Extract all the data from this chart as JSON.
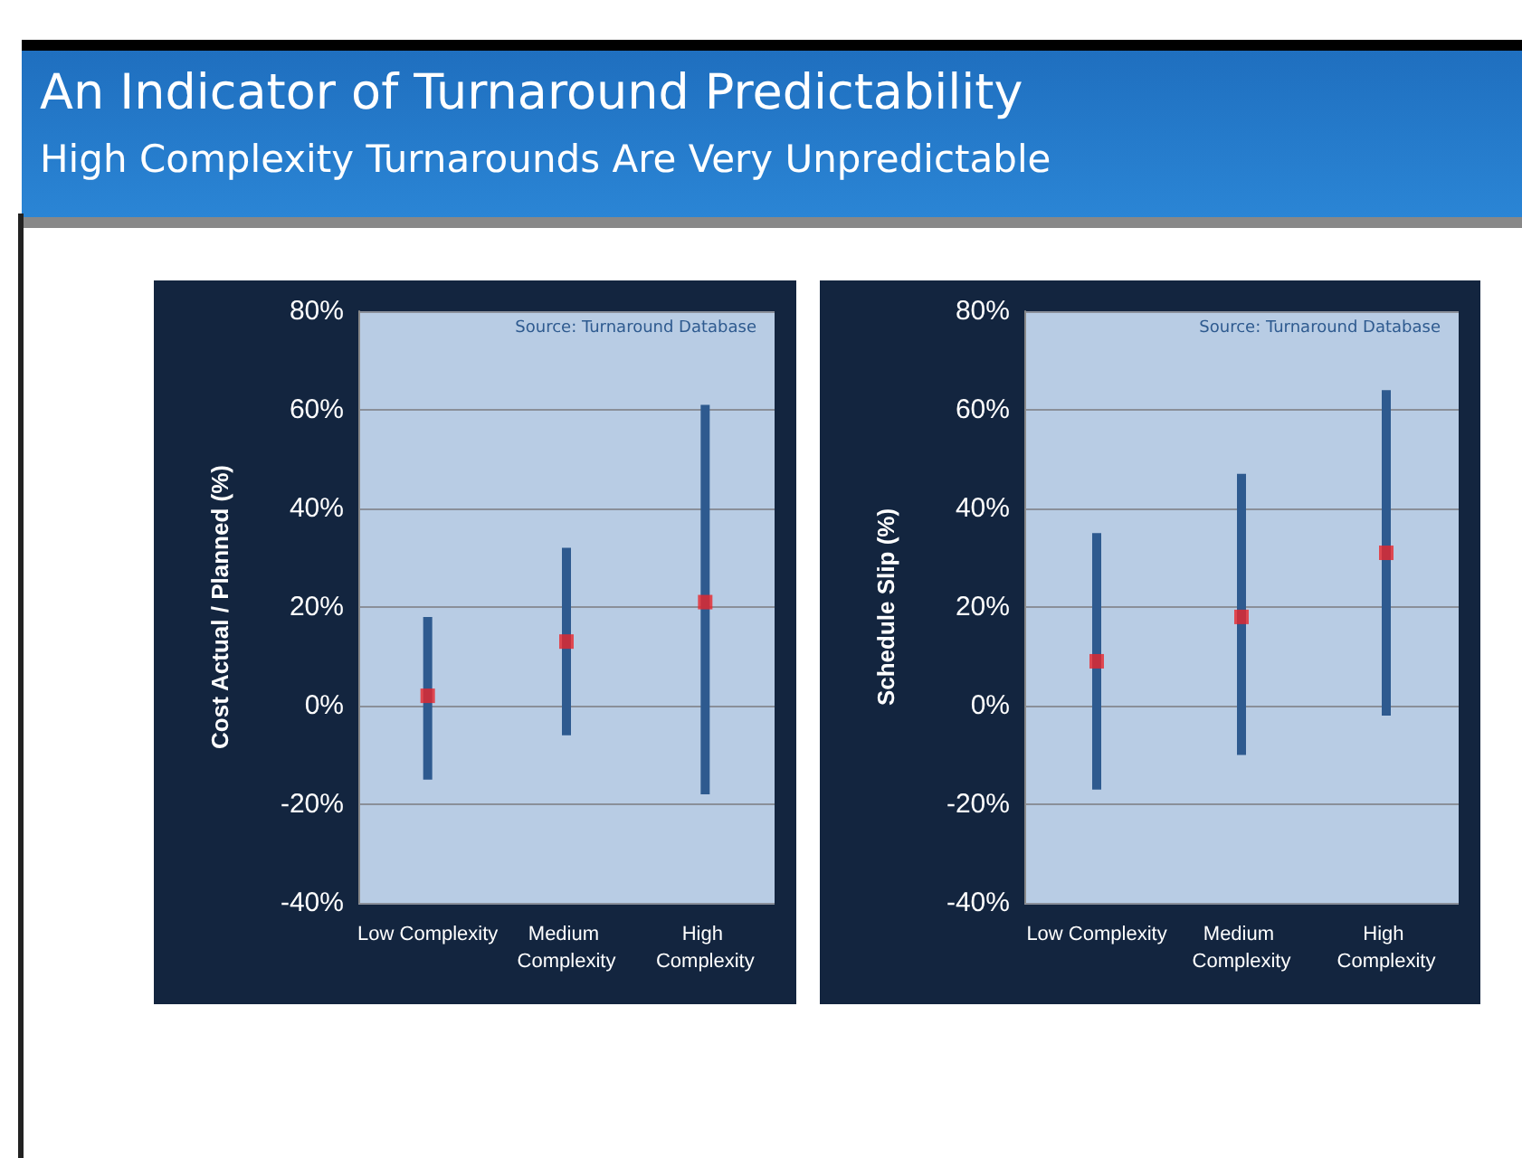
{
  "chart_data": [
    {
      "type": "bar",
      "title": "An Indicator of Turnaround Predictability",
      "subtitle": "High Complexity Turnarounds Are Very Unpredictable",
      "ylabel": "Cost Actual / Planned (%)",
      "annotations": [
        "Source: Turnaround Database"
      ],
      "categories": [
        "Low Complexity",
        "Medium Complexity",
        "High Complexity"
      ],
      "series": [
        {
          "color": "#2e5a8f",
          "base": [
            -15,
            -6,
            -18
          ],
          "values": [
            33,
            38,
            79
          ]
        },
        {
          "type": "scatter",
          "marker": "square",
          "color": "#e8262a",
          "x": [
            "Low Complexity",
            "Medium Complexity",
            "High Complexity"
          ],
          "values": [
            2,
            13,
            21
          ]
        }
      ],
      "ylim": [
        -40,
        80
      ],
      "yticks": [
        {
          "value": -40,
          "label": "-40%"
        },
        {
          "value": -20,
          "label": "-20%"
        },
        {
          "value": 0,
          "label": "0%"
        },
        {
          "value": 20,
          "label": "20%"
        },
        {
          "value": 40,
          "label": "40%"
        },
        {
          "value": 60,
          "label": "60%"
        },
        {
          "value": 80,
          "label": "80%"
        }
      ],
      "grid": "y"
    },
    {
      "type": "bar",
      "ylabel": "Schedule Slip (%)",
      "annotations": [
        "Source: Turnaround Database"
      ],
      "categories": [
        "Low Complexity",
        "Medium Complexity",
        "High Complexity"
      ],
      "series": [
        {
          "color": "#2e5a8f",
          "base": [
            -17,
            -10,
            -2
          ],
          "values": [
            52,
            57,
            66
          ]
        },
        {
          "type": "scatter",
          "marker": "square",
          "color": "#e8262a",
          "x": [
            "Low Complexity",
            "Medium Complexity",
            "High Complexity"
          ],
          "values": [
            9,
            18,
            31
          ]
        }
      ],
      "ylim": [
        -40,
        80
      ],
      "yticks": [
        {
          "value": -40,
          "label": "-40%"
        },
        {
          "value": -20,
          "label": "-20%"
        },
        {
          "value": 0,
          "label": "0%"
        },
        {
          "value": 20,
          "label": "20%"
        },
        {
          "value": 40,
          "label": "40%"
        },
        {
          "value": 60,
          "label": "60%"
        },
        {
          "value": 80,
          "label": "80%"
        }
      ],
      "grid": "y"
    }
  ]
}
